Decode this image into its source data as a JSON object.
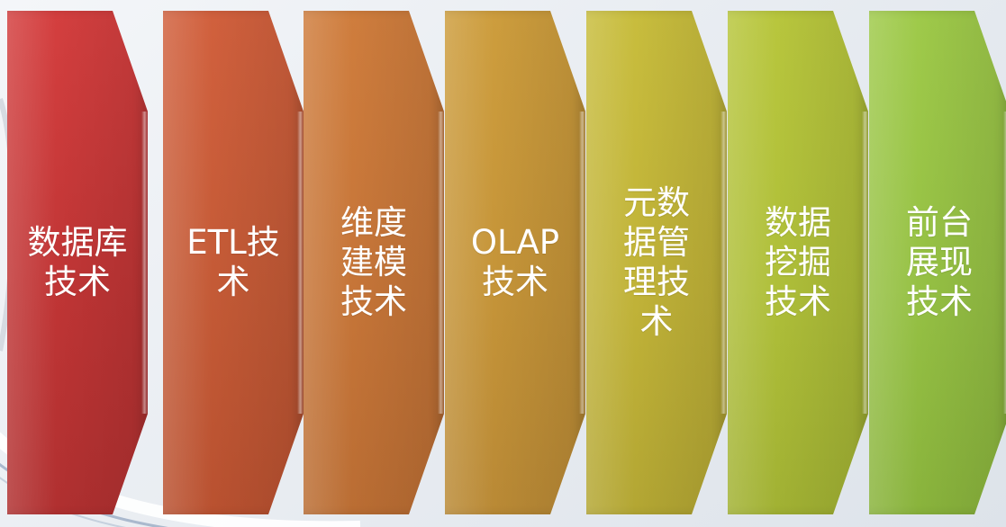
{
  "stages": [
    {
      "id": "c1",
      "lines": [
        "数据库",
        "技术"
      ]
    },
    {
      "id": "c2",
      "lines": [
        "ETL技",
        "术"
      ]
    },
    {
      "id": "c3",
      "lines": [
        "维度",
        "建模",
        "技术"
      ]
    },
    {
      "id": "c4",
      "lines": [
        "OLAP",
        "技术"
      ]
    },
    {
      "id": "c5",
      "lines": [
        "元数",
        "据管",
        "理技",
        "术"
      ]
    },
    {
      "id": "c6",
      "lines": [
        "数据",
        "挖掘",
        "技术"
      ]
    },
    {
      "id": "c7",
      "lines": [
        "前台",
        "展现",
        "技术"
      ]
    }
  ],
  "colors": {
    "stage1": "#c83838",
    "stage2": "#c95a36",
    "stage3": "#c97638",
    "stage4": "#c89538",
    "stage5": "#c4b53a",
    "stage6": "#b2c13a",
    "stage7": "#96c144"
  }
}
